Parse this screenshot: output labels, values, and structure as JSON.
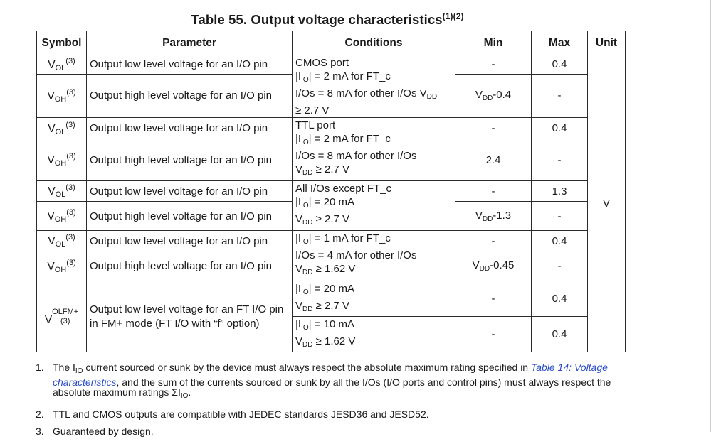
{
  "title": {
    "text": "Table 55. Output voltage characteristics",
    "refs": "(1)(2)"
  },
  "headers": {
    "symbol": "Symbol",
    "parameter": "Parameter",
    "conditions": "Conditions",
    "min": "Min",
    "max": "Max",
    "unit": "Unit"
  },
  "sym": {
    "v": "V",
    "ol": "OL",
    "oh": "OH",
    "olfm": "OLFM+",
    "ref3": "(3)"
  },
  "params": {
    "low": "Output low level voltage for an I/O pin",
    "high": "Output high level voltage for an I/O pin",
    "fm": "Output low level voltage for an FT I/O pin in FM+ mode (FT I/O with “f” option)"
  },
  "cond": {
    "c1": {
      "l1": "CMOS port",
      "l2a": "|I",
      "l2s": "IO",
      "l2b": "| = 2 mA for FT_c",
      "l3": "I/Os = 8 mA for other I/Os V",
      "l3s": "DD",
      "l4": "≥ 2.7 V"
    },
    "c2": {
      "l1": "TTL port",
      "l2a": "|I",
      "l2s": "IO",
      "l2b": "| = 2 mA for FT_c",
      "l3": "I/Os = 8 mA for other I/Os",
      "l4a": "V",
      "l4s": "DD",
      "l4b": " ≥ 2.7 V"
    },
    "c3": {
      "l1": "All I/Os except FT_c",
      "l2a": "|I",
      "l2s": "IO",
      "l2b": "| = 20 mA",
      "l3a": "V",
      "l3s": "DD",
      "l3b": " ≥ 2.7 V"
    },
    "c4": {
      "l1a": "|I",
      "l1s": "IO",
      "l1b": "| = 1 mA for FT_c",
      "l2": "I/Os = 4 mA for other I/Os",
      "l3a": "V",
      "l3s": "DD",
      "l3b": " ≥ 1.62 V"
    },
    "c5": {
      "l1a": "|I",
      "l1s": "IO",
      "l1b": "| = 20 mA",
      "l2a": "V",
      "l2s": "DD",
      "l2b": " ≥ 2.7 V"
    },
    "c6": {
      "l1a": "|I",
      "l1s": "IO",
      "l1b": "| = 10 mA",
      "l2a": "V",
      "l2s": "DD",
      "l2b": " ≥ 1.62 V"
    }
  },
  "values": {
    "dash": "-",
    "max04": "0.4",
    "max13": "1.3",
    "min_vdd": "V",
    "min_vdd_sub": "DD",
    "min1": "-0.4",
    "min2": "2.4",
    "min3": "-1.3",
    "min4": "-0.45",
    "unit": "V"
  },
  "notes": [
    {
      "num": "1.",
      "a": "The I",
      "sub": "IO",
      "b": " current sourced or sunk by the device must always respect the absolute maximum rating specified in ",
      "link": "Table 14: Voltage characteristics",
      "c": ", and the sum of the currents sourced or sunk by all the I/Os (I/O ports and control pins) must always respect the absolute maximum ratings ΣI",
      "sub2": "IO",
      "d": "."
    },
    {
      "num": "2.",
      "text": "TTL and CMOS outputs are compatible with JEDEC standards JESD36 and JESD52."
    },
    {
      "num": "3.",
      "text": "Guaranteed by design."
    }
  ]
}
